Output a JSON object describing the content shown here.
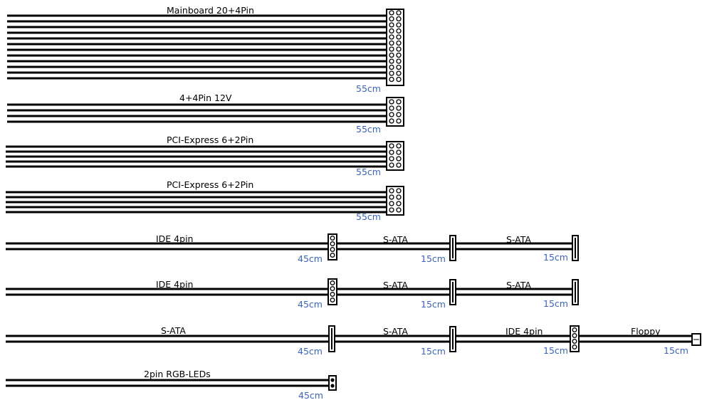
{
  "colors": {
    "background": "#ffffff",
    "wire": "#000000",
    "length_text": "#3a63c4",
    "label_text": "#000000"
  },
  "cables": [
    {
      "label": "Mainboard 20+4Pin",
      "length": "55cm",
      "wires": 12,
      "connector": "mainboard-24pin-connector",
      "pins": 24
    },
    {
      "label": "4+4Pin 12V",
      "length": "55cm",
      "wires": 4,
      "connector": "cpu-8pin-connector",
      "pins": 8
    },
    {
      "label": "PCI-Express 6+2Pin",
      "length": "55cm",
      "wires": 5,
      "connector": "pcie-8pin-connector",
      "pins": 8
    },
    {
      "label": "PCI-Express 6+2Pin",
      "length": "55cm",
      "wires": 5,
      "connector": "pcie-8pin-connector",
      "pins": 8
    },
    {
      "segments": [
        {
          "label": "IDE 4pin",
          "length": "45cm",
          "connector": "ide-4pin-connector"
        },
        {
          "label": "S-ATA",
          "length": "15cm",
          "connector": "sata-connector"
        },
        {
          "label": "S-ATA",
          "length": "15cm",
          "connector": "sata-connector"
        }
      ]
    },
    {
      "segments": [
        {
          "label": "IDE 4pin",
          "length": "45cm",
          "connector": "ide-4pin-connector"
        },
        {
          "label": "S-ATA",
          "length": "15cm",
          "connector": "sata-connector"
        },
        {
          "label": "S-ATA",
          "length": "15cm",
          "connector": "sata-connector"
        }
      ]
    },
    {
      "segments": [
        {
          "label": "S-ATA",
          "length": "45cm",
          "connector": "sata-connector"
        },
        {
          "label": "S-ATA",
          "length": "15cm",
          "connector": "sata-connector"
        },
        {
          "label": "IDE 4pin",
          "length": "15cm",
          "connector": "ide-4pin-connector"
        },
        {
          "label": "Floppy",
          "length": "15cm",
          "connector": "floppy-connector"
        }
      ]
    },
    {
      "segments": [
        {
          "label": "2pin RGB-LEDs",
          "length": "45cm",
          "connector": "rgb-2pin-connector"
        }
      ]
    }
  ]
}
